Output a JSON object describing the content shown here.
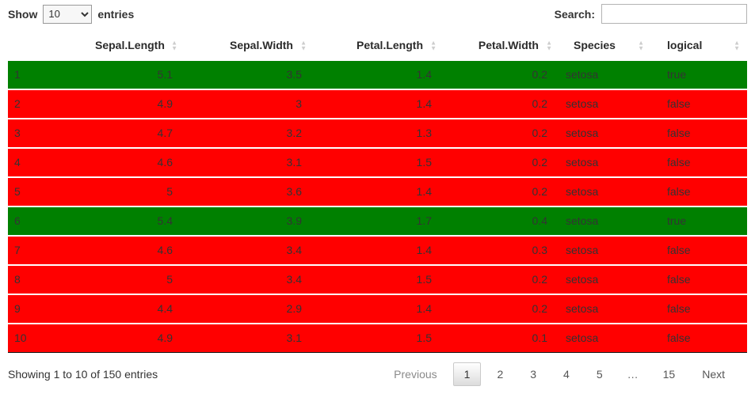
{
  "length_control": {
    "show_label": "Show",
    "entries_label": "entries",
    "selected": "10",
    "options": [
      "10"
    ]
  },
  "search": {
    "label": "Search:",
    "value": ""
  },
  "table": {
    "columns": [
      {
        "key": "name",
        "label": "",
        "sortable": false
      },
      {
        "key": "sepal_length",
        "label": "Sepal.Length",
        "sortable": true
      },
      {
        "key": "sepal_width",
        "label": "Sepal.Width",
        "sortable": true
      },
      {
        "key": "petal_length",
        "label": "Petal.Length",
        "sortable": true
      },
      {
        "key": "petal_width",
        "label": "Petal.Width",
        "sortable": true
      },
      {
        "key": "species",
        "label": "Species",
        "sortable": true
      },
      {
        "key": "logical",
        "label": "logical",
        "sortable": true
      }
    ],
    "rows": [
      {
        "name": "1",
        "sepal_length": "5.1",
        "sepal_width": "3.5",
        "petal_length": "1.4",
        "petal_width": "0.2",
        "species": "setosa",
        "logical": "true"
      },
      {
        "name": "2",
        "sepal_length": "4.9",
        "sepal_width": "3",
        "petal_length": "1.4",
        "petal_width": "0.2",
        "species": "setosa",
        "logical": "false"
      },
      {
        "name": "3",
        "sepal_length": "4.7",
        "sepal_width": "3.2",
        "petal_length": "1.3",
        "petal_width": "0.2",
        "species": "setosa",
        "logical": "false"
      },
      {
        "name": "4",
        "sepal_length": "4.6",
        "sepal_width": "3.1",
        "petal_length": "1.5",
        "petal_width": "0.2",
        "species": "setosa",
        "logical": "false"
      },
      {
        "name": "5",
        "sepal_length": "5",
        "sepal_width": "3.6",
        "petal_length": "1.4",
        "petal_width": "0.2",
        "species": "setosa",
        "logical": "false"
      },
      {
        "name": "6",
        "sepal_length": "5.4",
        "sepal_width": "3.9",
        "petal_length": "1.7",
        "petal_width": "0.4",
        "species": "setosa",
        "logical": "true"
      },
      {
        "name": "7",
        "sepal_length": "4.6",
        "sepal_width": "3.4",
        "petal_length": "1.4",
        "petal_width": "0.3",
        "species": "setosa",
        "logical": "false"
      },
      {
        "name": "8",
        "sepal_length": "5",
        "sepal_width": "3.4",
        "petal_length": "1.5",
        "petal_width": "0.2",
        "species": "setosa",
        "logical": "false"
      },
      {
        "name": "9",
        "sepal_length": "4.4",
        "sepal_width": "2.9",
        "petal_length": "1.4",
        "petal_width": "0.2",
        "species": "setosa",
        "logical": "false"
      },
      {
        "name": "10",
        "sepal_length": "4.9",
        "sepal_width": "3.1",
        "petal_length": "1.5",
        "petal_width": "0.1",
        "species": "setosa",
        "logical": "false"
      }
    ]
  },
  "colors": {
    "row_true_bg": "#008000",
    "row_false_bg": "#ff0000"
  },
  "footer": {
    "info": "Showing 1 to 10 of 150 entries"
  },
  "pagination": {
    "previous_label": "Previous",
    "pages": [
      "1",
      "2",
      "3",
      "4",
      "5",
      "…",
      "15"
    ],
    "current_page": "1",
    "ellipsis": "…",
    "next_label": "Next"
  }
}
